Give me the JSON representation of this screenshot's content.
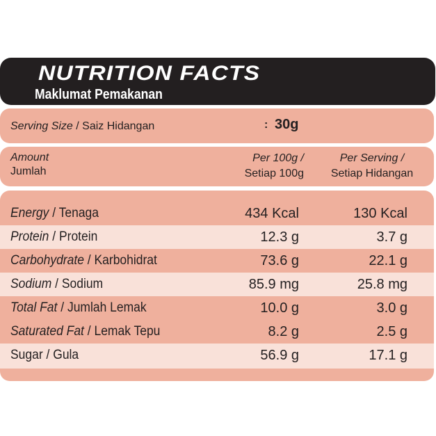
{
  "header": {
    "title": "NUTRITION FACTS",
    "subtitle": "Maklumat Pemakanan"
  },
  "serving": {
    "label_en": "Serving Size",
    "label_sep": " / ",
    "label_ms": "Saiz Hidangan",
    "colon": ":",
    "value": "30g"
  },
  "columns": {
    "amount_en": "Amount",
    "amount_ms": "Jumlah",
    "per100_en": "Per 100g /",
    "per100_ms": "Setiap 100g",
    "perserving_en": "Per Serving /",
    "perserving_ms": "Setiap Hidangan"
  },
  "colors": {
    "header_bg": "#231f20",
    "band_dark": "#efb09d",
    "band_light": "#f9e1d9"
  },
  "rows": [
    {
      "en": "Energy",
      "ms": "Tenaga",
      "per100": "434 Kcal",
      "per_serving": "130 Kcal"
    },
    {
      "en": "Protein",
      "ms": "Protein",
      "per100": "12.3 g",
      "per_serving": "3.7 g"
    },
    {
      "en": "Carbohydrate",
      "ms": "Karbohidrat",
      "per100": "73.6 g",
      "per_serving": "22.1 g"
    },
    {
      "en": "Sodium",
      "ms": "Sodium",
      "per100": "85.9 mg",
      "per_serving": "25.8 mg"
    },
    {
      "en": "Total Fat",
      "ms": "Jumlah Lemak",
      "per100": "10.0 g",
      "per_serving": "3.0 g"
    },
    {
      "en": "Saturated Fat",
      "ms": "Lemak Tepu",
      "per100": "8.2 g",
      "per_serving": "2.5 g"
    },
    {
      "en": "Sugar",
      "ms": "Gula",
      "per100": "56.9 g",
      "per_serving": "17.1 g"
    }
  ],
  "sep": " / "
}
